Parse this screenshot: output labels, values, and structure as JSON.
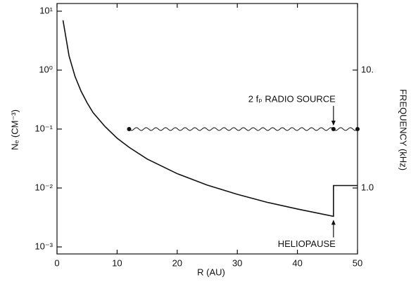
{
  "chart_data": {
    "type": "line",
    "x_label": "R (AU)",
    "y_label": "Nₑ (CM⁻³)",
    "y2_label": "FREQUENCY (kHz)",
    "xlim": [
      0,
      50
    ],
    "xticks": [
      0,
      10,
      20,
      30,
      40,
      50
    ],
    "ylim": [
      0.00076,
      13.5
    ],
    "log_y": true,
    "yticks": [
      {
        "value": 10,
        "label": "10¹"
      },
      {
        "value": 1,
        "label": "10⁰"
      },
      {
        "value": 0.1,
        "label": "10⁻¹"
      },
      {
        "value": 0.01,
        "label": "10⁻²"
      },
      {
        "value": 0.001,
        "label": "10⁻³"
      }
    ],
    "y2lim": [
      0.276,
      36.7
    ],
    "log_y2": true,
    "y2ticks": [
      {
        "value": 10,
        "label": "10."
      },
      {
        "value": 1,
        "label": "1.0"
      }
    ],
    "series": [
      {
        "color": "#111",
        "x": [
          1,
          2,
          3,
          4,
          5,
          6,
          8,
          10,
          12,
          15,
          20,
          25,
          30,
          35,
          40,
          46,
          46,
          50
        ],
        "values": [
          7,
          1.75,
          0.78,
          0.44,
          0.28,
          0.19,
          0.11,
          0.07,
          0.049,
          0.031,
          0.0175,
          0.0112,
          0.0078,
          0.0057,
          0.0044,
          0.0033,
          0.011,
          0.011
        ]
      }
    ],
    "radio_source": {
      "x": [
        12,
        46,
        50
      ],
      "values": [
        0.1,
        0.1,
        0.1
      ],
      "color": "#111",
      "label": "2 fₚ RADIO SOURCE"
    },
    "heliopause": {
      "x": 46,
      "label": "HELIOPAUSE"
    }
  }
}
